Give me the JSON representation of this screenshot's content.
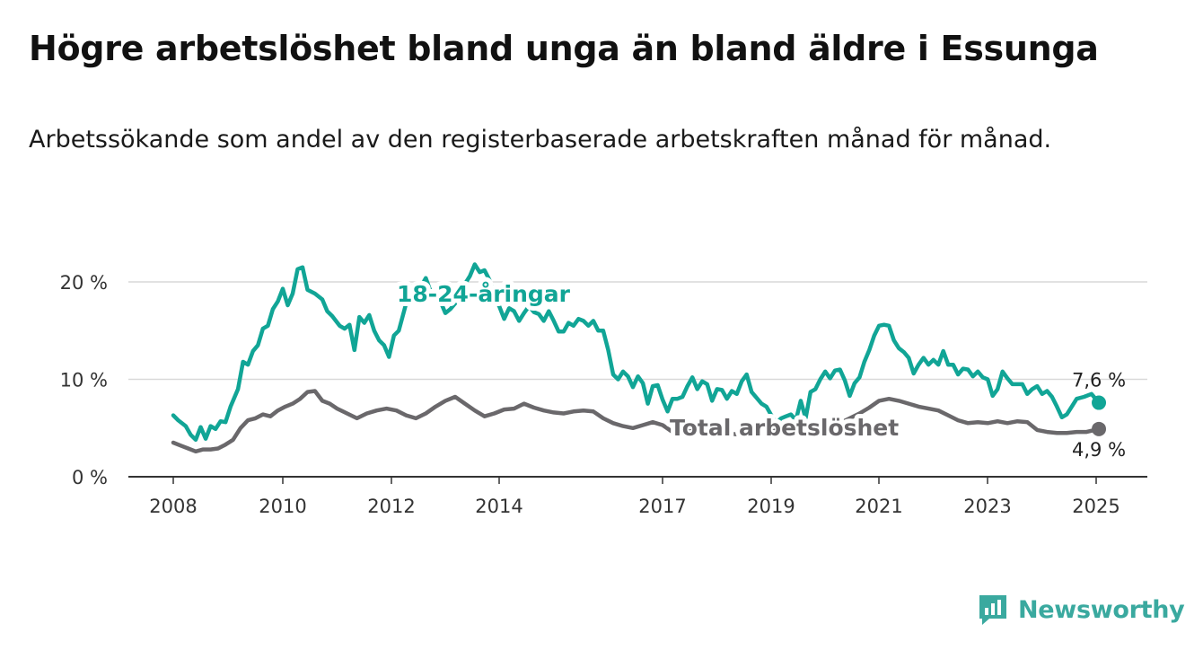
{
  "title": "Högre arbetslöshet bland unga än bland äldre i Essunga",
  "subtitle": "Arbetssökande som andel av den registerbaserade arbetskraften månad för månad.",
  "brand": {
    "name": "Newsworthy",
    "icon": "newsworthy-bar-chart-icon",
    "color": "#3aa99f"
  },
  "chart_data": {
    "type": "line",
    "x_unit": "year",
    "x_range": [
      2007.5,
      2025.9
    ],
    "ylim": [
      0,
      20
    ],
    "y_ticks": [
      0,
      10,
      20
    ],
    "y_tick_labels": [
      "0 %",
      "10 %",
      "20 %"
    ],
    "x_ticks": [
      2008,
      2010,
      2012,
      2014,
      2017,
      2019,
      2021,
      2023,
      2025
    ],
    "x_tick_labels": [
      "2008",
      "2010",
      "2012",
      "2014",
      "2017",
      "2019",
      "2021",
      "2023",
      "2025"
    ],
    "grid": true,
    "series": [
      {
        "name": "18-24-åringar",
        "color": "#11a596",
        "end_label": "7,6 %",
        "points": [
          [
            2008.0,
            6.3
          ],
          [
            2008.1,
            5.8
          ],
          [
            2008.25,
            5.2
          ],
          [
            2008.35,
            4.3
          ],
          [
            2008.45,
            3.8
          ],
          [
            2008.55,
            5.1
          ],
          [
            2008.65,
            3.9
          ],
          [
            2008.75,
            5.2
          ],
          [
            2008.85,
            4.9
          ],
          [
            2008.95,
            5.7
          ],
          [
            2009.05,
            5.6
          ],
          [
            2009.15,
            7.2
          ],
          [
            2009.3,
            9.0
          ],
          [
            2009.4,
            11.8
          ],
          [
            2009.5,
            11.5
          ],
          [
            2009.6,
            12.9
          ],
          [
            2009.7,
            13.5
          ],
          [
            2009.8,
            15.2
          ],
          [
            2009.9,
            15.5
          ],
          [
            2010.0,
            17.2
          ],
          [
            2010.1,
            18.0
          ],
          [
            2010.2,
            19.3
          ],
          [
            2010.3,
            17.6
          ],
          [
            2010.4,
            18.8
          ],
          [
            2010.5,
            21.3
          ],
          [
            2010.6,
            21.5
          ],
          [
            2010.7,
            19.2
          ],
          [
            2010.85,
            18.8
          ],
          [
            2011.0,
            18.2
          ],
          [
            2011.1,
            17.0
          ],
          [
            2011.2,
            16.5
          ],
          [
            2011.35,
            15.5
          ],
          [
            2011.45,
            15.2
          ],
          [
            2011.55,
            15.6
          ],
          [
            2011.65,
            13.0
          ],
          [
            2011.75,
            16.4
          ],
          [
            2011.85,
            15.8
          ],
          [
            2011.95,
            16.6
          ],
          [
            2012.05,
            15.0
          ],
          [
            2012.15,
            14.0
          ],
          [
            2012.25,
            13.5
          ],
          [
            2012.35,
            12.3
          ],
          [
            2012.45,
            14.5
          ],
          [
            2012.55,
            15.0
          ],
          [
            2012.7,
            17.8
          ],
          [
            2012.8,
            19.5
          ],
          [
            2012.9,
            19.8
          ],
          [
            2013.0,
            19.5
          ],
          [
            2013.1,
            20.4
          ],
          [
            2013.2,
            19.0
          ],
          [
            2013.3,
            18.5
          ],
          [
            2013.4,
            18.0
          ],
          [
            2013.5,
            16.8
          ],
          [
            2013.6,
            17.2
          ],
          [
            2013.7,
            17.8
          ],
          [
            2013.8,
            19.5
          ],
          [
            2013.9,
            19.8
          ],
          [
            2014.0,
            20.6
          ],
          [
            2014.1,
            21.8
          ],
          [
            2014.2,
            21.0
          ],
          [
            2014.3,
            21.2
          ],
          [
            2014.4,
            20.2
          ],
          [
            2014.5,
            18.5
          ],
          [
            2014.6,
            17.5
          ],
          [
            2014.7,
            16.2
          ],
          [
            2014.8,
            17.3
          ],
          [
            2014.9,
            17.0
          ],
          [
            2015.0,
            16.0
          ],
          [
            2015.1,
            16.8
          ],
          [
            2015.2,
            17.5
          ],
          [
            2015.3,
            16.9
          ],
          [
            2015.4,
            16.7
          ],
          [
            2015.5,
            16.0
          ],
          [
            2015.6,
            17.0
          ],
          [
            2015.7,
            16.0
          ],
          [
            2015.8,
            14.9
          ],
          [
            2015.9,
            14.9
          ],
          [
            2016.0,
            15.8
          ],
          [
            2016.1,
            15.5
          ],
          [
            2016.2,
            16.2
          ],
          [
            2016.3,
            16.0
          ],
          [
            2016.4,
            15.5
          ],
          [
            2016.5,
            16.0
          ],
          [
            2016.6,
            15.0
          ],
          [
            2016.7,
            15.0
          ],
          [
            2016.8,
            13.0
          ],
          [
            2016.9,
            10.5
          ],
          [
            2017.0,
            10.0
          ],
          [
            2017.1,
            10.8
          ],
          [
            2017.2,
            10.3
          ],
          [
            2017.3,
            9.2
          ],
          [
            2017.4,
            10.3
          ],
          [
            2017.5,
            9.6
          ],
          [
            2017.6,
            7.5
          ],
          [
            2017.7,
            9.3
          ],
          [
            2017.8,
            9.4
          ],
          [
            2017.9,
            7.9
          ],
          [
            2018.0,
            6.7
          ],
          [
            2018.1,
            8.0
          ],
          [
            2018.2,
            8.0
          ],
          [
            2018.3,
            8.2
          ],
          [
            2018.4,
            9.3
          ],
          [
            2018.5,
            10.2
          ],
          [
            2018.6,
            9.0
          ],
          [
            2018.7,
            9.8
          ],
          [
            2018.8,
            9.5
          ],
          [
            2018.9,
            7.8
          ],
          [
            2019.0,
            9.0
          ],
          [
            2019.1,
            8.9
          ],
          [
            2019.2,
            8.0
          ],
          [
            2019.3,
            8.8
          ],
          [
            2019.4,
            8.5
          ],
          [
            2019.5,
            9.8
          ],
          [
            2019.6,
            10.5
          ],
          [
            2019.7,
            8.7
          ],
          [
            2019.8,
            8.1
          ],
          [
            2019.9,
            7.5
          ],
          [
            2020.0,
            7.2
          ],
          [
            2020.1,
            6.3
          ],
          [
            2020.2,
            5.5
          ],
          [
            2020.3,
            6.0
          ],
          [
            2020.4,
            6.2
          ],
          [
            2020.5,
            6.4
          ],
          [
            2020.6,
            5.8
          ],
          [
            2020.7,
            7.8
          ],
          [
            2020.8,
            6.0
          ],
          [
            2020.9,
            8.7
          ],
          [
            2021.0,
            9.0
          ],
          [
            2021.1,
            10.0
          ],
          [
            2021.2,
            10.8
          ],
          [
            2021.3,
            10.1
          ],
          [
            2021.4,
            10.9
          ],
          [
            2021.5,
            11.0
          ],
          [
            2021.6,
            9.9
          ],
          [
            2021.7,
            8.3
          ],
          [
            2021.8,
            9.6
          ],
          [
            2021.9,
            10.2
          ],
          [
            2022.0,
            11.8
          ],
          [
            2022.1,
            13.0
          ],
          [
            2022.2,
            14.5
          ],
          [
            2022.3,
            15.5
          ],
          [
            2022.4,
            15.6
          ],
          [
            2022.5,
            15.5
          ],
          [
            2022.6,
            14.0
          ],
          [
            2022.7,
            13.2
          ],
          [
            2022.8,
            12.8
          ],
          [
            2022.9,
            12.2
          ],
          [
            2023.0,
            10.6
          ],
          [
            2023.1,
            11.5
          ],
          [
            2023.2,
            12.2
          ],
          [
            2023.3,
            11.5
          ],
          [
            2023.4,
            12.0
          ],
          [
            2023.5,
            11.5
          ],
          [
            2023.6,
            12.9
          ],
          [
            2023.7,
            11.5
          ],
          [
            2023.8,
            11.5
          ],
          [
            2023.9,
            10.5
          ],
          [
            2024.0,
            11.1
          ],
          [
            2024.1,
            11.0
          ],
          [
            2024.2,
            10.3
          ],
          [
            2024.3,
            10.8
          ],
          [
            2024.4,
            10.2
          ],
          [
            2024.5,
            10.0
          ],
          [
            2024.6,
            8.3
          ],
          [
            2024.7,
            9.0
          ],
          [
            2024.8,
            10.8
          ],
          [
            2024.9,
            10.1
          ],
          [
            2025.0,
            9.5
          ],
          [
            2025.1,
            9.5
          ],
          [
            2025.2,
            9.5
          ],
          [
            2025.3,
            8.5
          ],
          [
            2025.4,
            9.0
          ],
          [
            2025.5,
            9.3
          ],
          [
            2025.6,
            8.5
          ],
          [
            2025.7,
            8.8
          ],
          [
            2025.8,
            8.2
          ],
          [
            2025.9,
            7.2
          ],
          [
            2026.0,
            6.1
          ],
          [
            2026.1,
            6.4
          ],
          [
            2026.2,
            7.2
          ],
          [
            2026.3,
            8.0
          ],
          [
            2026.45,
            8.2
          ],
          [
            2026.6,
            8.5
          ],
          [
            2026.75,
            7.6
          ]
        ]
      },
      {
        "name": "Total arbetslöshet",
        "color": "#6a686b",
        "end_label": "4,9 %",
        "points": [
          [
            2008.0,
            3.5
          ],
          [
            2008.15,
            3.2
          ],
          [
            2008.3,
            2.9
          ],
          [
            2008.45,
            2.6
          ],
          [
            2008.6,
            2.8
          ],
          [
            2008.75,
            2.8
          ],
          [
            2008.9,
            2.9
          ],
          [
            2009.05,
            3.3
          ],
          [
            2009.2,
            3.8
          ],
          [
            2009.35,
            5.0
          ],
          [
            2009.5,
            5.8
          ],
          [
            2009.65,
            6.0
          ],
          [
            2009.8,
            6.4
          ],
          [
            2009.95,
            6.2
          ],
          [
            2010.1,
            6.8
          ],
          [
            2010.25,
            7.2
          ],
          [
            2010.4,
            7.5
          ],
          [
            2010.55,
            8.0
          ],
          [
            2010.7,
            8.7
          ],
          [
            2010.85,
            8.8
          ],
          [
            2011.0,
            7.8
          ],
          [
            2011.15,
            7.5
          ],
          [
            2011.3,
            7.0
          ],
          [
            2011.5,
            6.5
          ],
          [
            2011.7,
            6.0
          ],
          [
            2011.9,
            6.5
          ],
          [
            2012.1,
            6.8
          ],
          [
            2012.3,
            7.0
          ],
          [
            2012.5,
            6.8
          ],
          [
            2012.7,
            6.3
          ],
          [
            2012.9,
            6.0
          ],
          [
            2013.1,
            6.5
          ],
          [
            2013.3,
            7.2
          ],
          [
            2013.5,
            7.8
          ],
          [
            2013.7,
            8.2
          ],
          [
            2013.9,
            7.5
          ],
          [
            2014.1,
            6.8
          ],
          [
            2014.3,
            6.2
          ],
          [
            2014.5,
            6.5
          ],
          [
            2014.7,
            6.9
          ],
          [
            2014.9,
            7.0
          ],
          [
            2015.1,
            7.5
          ],
          [
            2015.3,
            7.1
          ],
          [
            2015.5,
            6.8
          ],
          [
            2015.7,
            6.6
          ],
          [
            2015.9,
            6.5
          ],
          [
            2016.1,
            6.7
          ],
          [
            2016.3,
            6.8
          ],
          [
            2016.5,
            6.7
          ],
          [
            2016.7,
            6.0
          ],
          [
            2016.9,
            5.5
          ],
          [
            2017.1,
            5.2
          ],
          [
            2017.3,
            5.0
          ],
          [
            2017.5,
            5.3
          ],
          [
            2017.7,
            5.6
          ],
          [
            2017.9,
            5.3
          ],
          [
            2018.1,
            4.6
          ],
          [
            2018.3,
            4.5
          ],
          [
            2018.5,
            4.7
          ],
          [
            2018.7,
            4.8
          ],
          [
            2018.9,
            4.8
          ],
          [
            2019.1,
            4.6
          ],
          [
            2019.3,
            4.4
          ],
          [
            2019.5,
            4.3
          ],
          [
            2019.7,
            4.5
          ],
          [
            2019.9,
            4.5
          ],
          [
            2020.1,
            4.8
          ],
          [
            2020.3,
            5.0
          ],
          [
            2020.5,
            5.0
          ],
          [
            2020.7,
            4.8
          ],
          [
            2020.9,
            4.8
          ],
          [
            2021.1,
            4.9
          ],
          [
            2021.3,
            5.0
          ],
          [
            2021.5,
            5.5
          ],
          [
            2021.7,
            6.0
          ],
          [
            2021.9,
            6.5
          ],
          [
            2022.1,
            7.1
          ],
          [
            2022.3,
            7.8
          ],
          [
            2022.5,
            8.0
          ],
          [
            2022.7,
            7.8
          ],
          [
            2022.9,
            7.5
          ],
          [
            2023.1,
            7.2
          ],
          [
            2023.3,
            7.0
          ],
          [
            2023.5,
            6.8
          ],
          [
            2023.7,
            6.3
          ],
          [
            2023.9,
            5.8
          ],
          [
            2024.1,
            5.5
          ],
          [
            2024.3,
            5.6
          ],
          [
            2024.5,
            5.5
          ],
          [
            2024.7,
            5.7
          ],
          [
            2024.9,
            5.5
          ],
          [
            2025.1,
            5.7
          ],
          [
            2025.3,
            5.6
          ],
          [
            2025.5,
            4.8
          ],
          [
            2025.7,
            4.6
          ],
          [
            2025.9,
            4.5
          ],
          [
            2026.1,
            4.5
          ],
          [
            2026.3,
            4.6
          ],
          [
            2026.5,
            4.6
          ],
          [
            2026.75,
            4.9
          ]
        ]
      }
    ]
  }
}
